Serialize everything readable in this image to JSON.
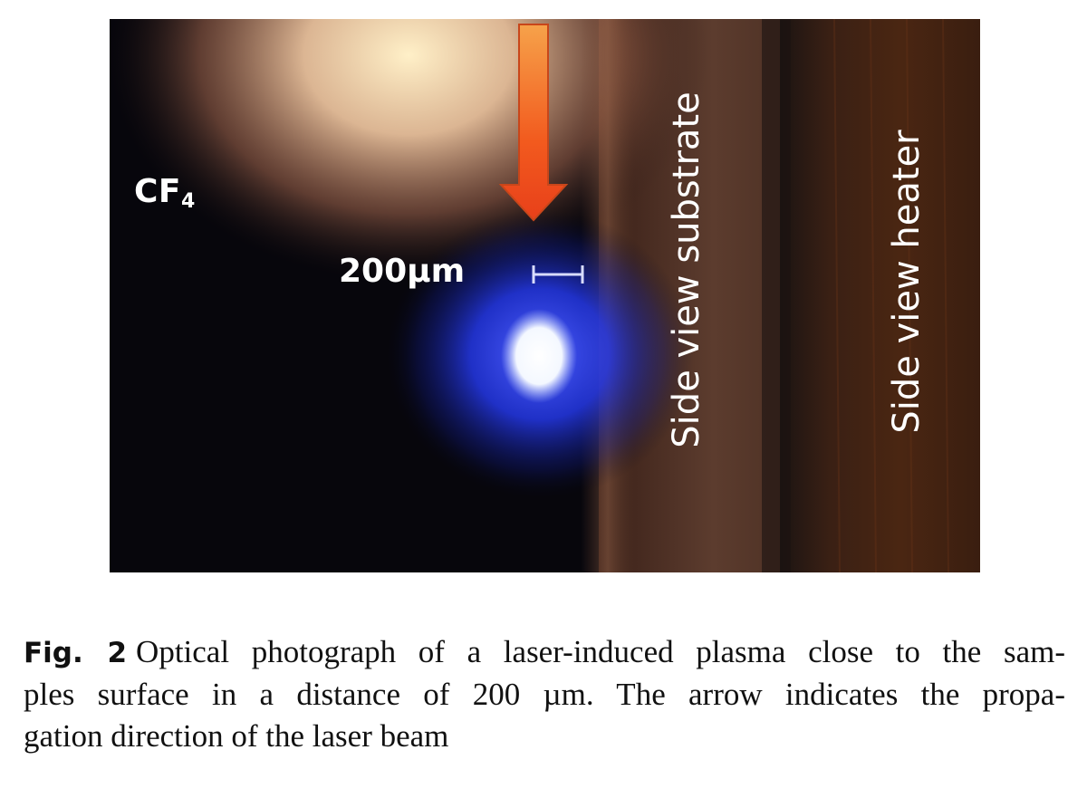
{
  "photo": {
    "gas_label_main": "CF",
    "gas_label_sub": "4",
    "scale_bar_label": "200µm",
    "substrate_label": "Side view substrate",
    "heater_label": "Side view heater"
  },
  "caption": {
    "figure_label": "Fig. 2",
    "line1": "Optical photograph of a laser-induced plasma close to the sam-",
    "line2": "ples surface in a distance of 200 µm. The arrow indicates the propa-",
    "line3": "gation direction of the laser beam"
  },
  "colors": {
    "plasma_core": "#ffffff",
    "plasma_glow": "#2a3cff",
    "arrow_fill": "#f25a1e",
    "background_dark": "#07060c"
  },
  "icons": {
    "arrow": "down-arrow-icon",
    "scale_bar": "scale-bar-icon"
  }
}
